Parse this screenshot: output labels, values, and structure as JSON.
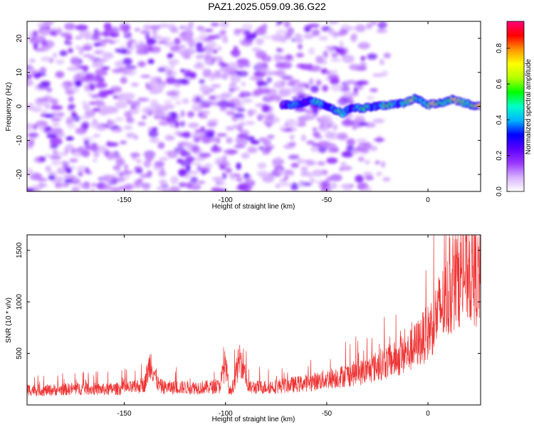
{
  "figure": {
    "title": "PAZ1.2025.059.09.36.G22"
  },
  "chart_data": [
    {
      "type": "heatmap",
      "title": "PAZ1.2025.059.09.36.G22",
      "xlabel": "Height of straight line (km)",
      "ylabel": "Frequency (Hz)",
      "xlim": [
        -198,
        26
      ],
      "ylim": [
        -25,
        25
      ],
      "xticks": [
        -150,
        -100,
        -50,
        0
      ],
      "xtick_labels": [
        "-150",
        "-100",
        "-50",
        "0"
      ],
      "yticks": [
        -20,
        -10,
        0,
        10,
        20
      ],
      "ytick_labels": [
        "-20",
        "-10",
        "0",
        "10",
        "20"
      ],
      "noise_region_x": [
        -198,
        -20
      ],
      "signal_ridge": {
        "x": [
          -72,
          -65,
          -58,
          -52,
          -46,
          -42,
          -38,
          -32,
          -25,
          -18,
          -12,
          -6,
          0,
          6,
          12,
          18,
          24
        ],
        "y": [
          0.5,
          0.5,
          1.8,
          0.5,
          -1.0,
          -2.0,
          -0.5,
          -0.5,
          0.0,
          0.5,
          1.0,
          2.5,
          0.5,
          1.0,
          2.0,
          1.0,
          0.0
        ]
      },
      "colorbar": {
        "label": "Normalized spectral amplitude",
        "range": [
          0.0,
          0.95
        ],
        "ticks": [
          0.0,
          0.2,
          0.4,
          0.6,
          0.8
        ],
        "tick_labels": [
          "0.0",
          "0.2",
          "0.4",
          "0.6",
          "0.8"
        ],
        "colormap": [
          "#ffffff",
          "#d7b0ff",
          "#9a37ff",
          "#5a00ff",
          "#0000ff",
          "#00b4ff",
          "#00ffc8",
          "#00ff00",
          "#b4ff00",
          "#ffff00",
          "#ff9600",
          "#ff0000",
          "#ff0078"
        ]
      },
      "grid": false
    },
    {
      "type": "line",
      "xlabel": "Height of straight line (km)",
      "ylabel": "SNR (10 * v/v)",
      "xlim": [
        -198,
        26
      ],
      "ylim": [
        0,
        1650
      ],
      "xticks": [
        -150,
        -100,
        -50,
        0
      ],
      "xtick_labels": [
        "-150",
        "-100",
        "-50",
        "0"
      ],
      "yticks": [
        500,
        1000,
        1500
      ],
      "ytick_labels": [
        "500",
        "1000",
        "1500"
      ],
      "line_color": "#ee3333",
      "series": [
        {
          "x": [
            -198,
            -190,
            -180,
            -170,
            -160,
            -150,
            -145,
            -140,
            -137,
            -135,
            -133,
            -130,
            -120,
            -110,
            -103,
            -100,
            -98,
            -96,
            -93,
            -91,
            -89,
            -85,
            -75,
            -65,
            -55,
            -45,
            -40,
            -35,
            -30,
            -25,
            -20,
            -15,
            -10,
            -5,
            0,
            5,
            10,
            15,
            20,
            26
          ],
          "y": [
            150,
            140,
            150,
            160,
            150,
            160,
            170,
            200,
            420,
            300,
            190,
            170,
            170,
            170,
            180,
            400,
            120,
            200,
            450,
            400,
            170,
            170,
            180,
            200,
            230,
            270,
            290,
            310,
            330,
            380,
            420,
            450,
            500,
            600,
            700,
            900,
            1050,
            1250,
            1300,
            1200
          ]
        }
      ],
      "grid": false
    }
  ]
}
